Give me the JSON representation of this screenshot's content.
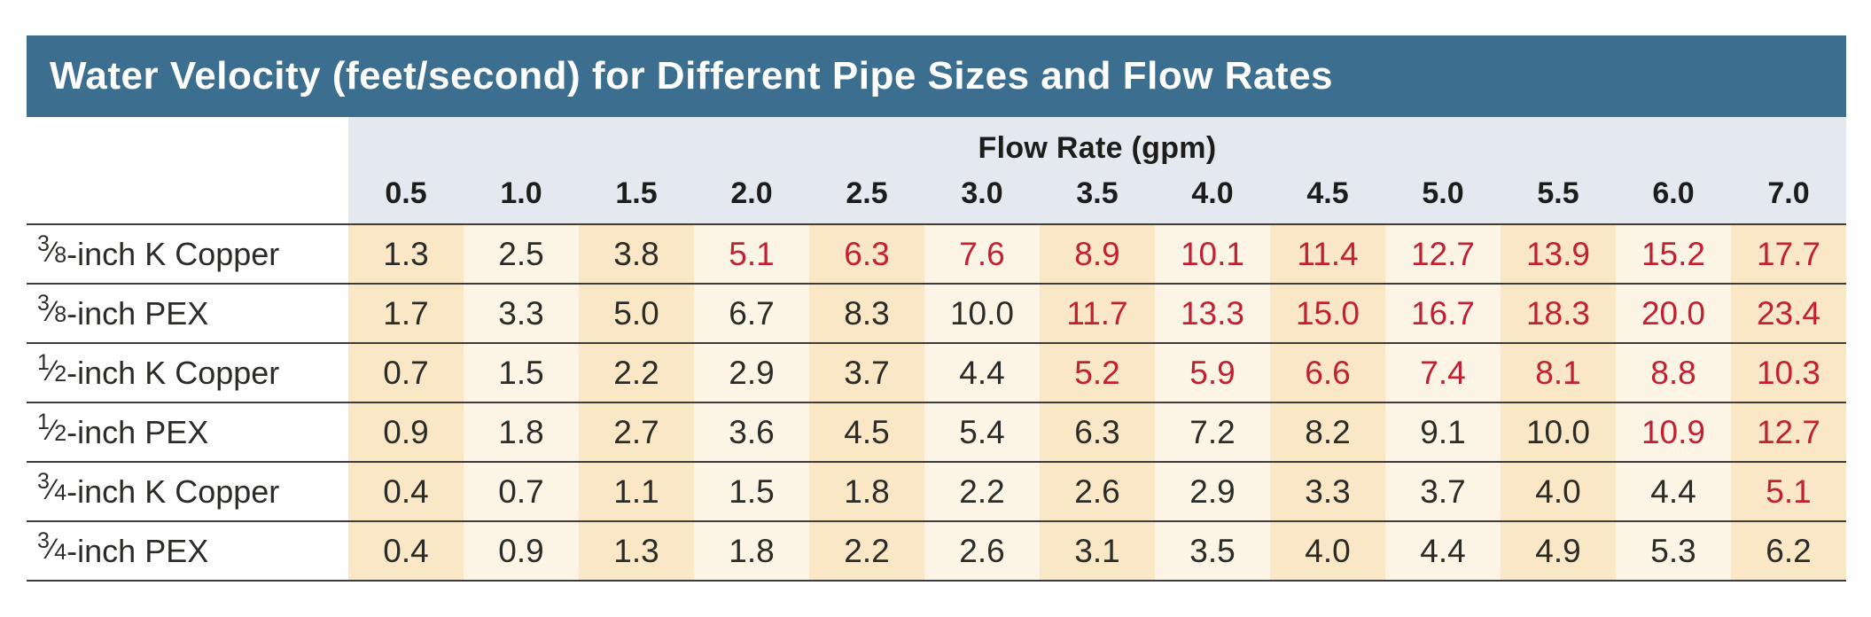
{
  "title": "Water Velocity (feet/second) for Different Pipe Sizes and Flow Rates",
  "colors": {
    "title_bar_bg": "#3C6E8F",
    "title_text": "#FFFFFF",
    "header_bg": "#E4E9F0",
    "column_dark_bg": "#F9E7C6",
    "column_light_bg": "#FCF5E6",
    "value_normal": "#2B2B28",
    "value_excessive": "#C22033",
    "row_separator": "#3D3C3A"
  },
  "table": {
    "flow_header": "Flow Rate (gpm)",
    "flow_columns": [
      "0.5",
      "1.0",
      "1.5",
      "2.0",
      "2.5",
      "3.0",
      "3.5",
      "4.0",
      "4.5",
      "5.0",
      "5.5",
      "6.0",
      "7.0"
    ],
    "rows": [
      {
        "pipe_size_numerator": "3",
        "pipe_size_denominator": "8",
        "pipe_label_rest": "-inch K Copper",
        "pipe_label_plain": "3/8-inch K Copper",
        "values": [
          "1.3",
          "2.5",
          "3.8",
          "5.1",
          "6.3",
          "7.6",
          "8.9",
          "10.1",
          "11.4",
          "12.7",
          "13.9",
          "15.2",
          "17.7"
        ],
        "high": [
          false,
          false,
          false,
          true,
          true,
          true,
          true,
          true,
          true,
          true,
          true,
          true,
          true
        ]
      },
      {
        "pipe_size_numerator": "3",
        "pipe_size_denominator": "8",
        "pipe_label_rest": "-inch PEX",
        "pipe_label_plain": "3/8-inch PEX",
        "values": [
          "1.7",
          "3.3",
          "5.0",
          "6.7",
          "8.3",
          "10.0",
          "11.7",
          "13.3",
          "15.0",
          "16.7",
          "18.3",
          "20.0",
          "23.4"
        ],
        "high": [
          false,
          false,
          false,
          false,
          false,
          false,
          true,
          true,
          true,
          true,
          true,
          true,
          true
        ]
      },
      {
        "pipe_size_numerator": "1",
        "pipe_size_denominator": "2",
        "pipe_label_rest": "-inch K Copper",
        "pipe_label_plain": "1/2-inch K Copper",
        "values": [
          "0.7",
          "1.5",
          "2.2",
          "2.9",
          "3.7",
          "4.4",
          "5.2",
          "5.9",
          "6.6",
          "7.4",
          "8.1",
          "8.8",
          "10.3"
        ],
        "high": [
          false,
          false,
          false,
          false,
          false,
          false,
          true,
          true,
          true,
          true,
          true,
          true,
          true
        ]
      },
      {
        "pipe_size_numerator": "1",
        "pipe_size_denominator": "2",
        "pipe_label_rest": "-inch PEX",
        "pipe_label_plain": "1/2-inch PEX",
        "values": [
          "0.9",
          "1.8",
          "2.7",
          "3.6",
          "4.5",
          "5.4",
          "6.3",
          "7.2",
          "8.2",
          "9.1",
          "10.0",
          "10.9",
          "12.7"
        ],
        "high": [
          false,
          false,
          false,
          false,
          false,
          false,
          false,
          false,
          false,
          false,
          false,
          true,
          true
        ]
      },
      {
        "pipe_size_numerator": "3",
        "pipe_size_denominator": "4",
        "pipe_label_rest": "-inch K Copper",
        "pipe_label_plain": "3/4-inch K Copper",
        "values": [
          "0.4",
          "0.7",
          "1.1",
          "1.5",
          "1.8",
          "2.2",
          "2.6",
          "2.9",
          "3.3",
          "3.7",
          "4.0",
          "4.4",
          "5.1"
        ],
        "high": [
          false,
          false,
          false,
          false,
          false,
          false,
          false,
          false,
          false,
          false,
          false,
          false,
          true
        ]
      },
      {
        "pipe_size_numerator": "3",
        "pipe_size_denominator": "4",
        "pipe_label_rest": "-inch PEX",
        "pipe_label_plain": "3/4-inch PEX",
        "values": [
          "0.4",
          "0.9",
          "1.3",
          "1.8",
          "2.2",
          "2.6",
          "3.1",
          "3.5",
          "4.0",
          "4.4",
          "4.9",
          "5.3",
          "6.2"
        ],
        "high": [
          false,
          false,
          false,
          false,
          false,
          false,
          false,
          false,
          false,
          false,
          false,
          false,
          false
        ]
      }
    ]
  },
  "chart_data": {
    "type": "table",
    "title": "Water Velocity (feet/second) for Different Pipe Sizes and Flow Rates",
    "xlabel": "Flow Rate (gpm)",
    "x": [
      0.5,
      1.0,
      1.5,
      2.0,
      2.5,
      3.0,
      3.5,
      4.0,
      4.5,
      5.0,
      5.5,
      6.0,
      7.0
    ],
    "series": [
      {
        "name": "3/8-inch K Copper",
        "values": [
          1.3,
          2.5,
          3.8,
          5.1,
          6.3,
          7.6,
          8.9,
          10.1,
          11.4,
          12.7,
          13.9,
          15.2,
          17.7
        ]
      },
      {
        "name": "3/8-inch PEX",
        "values": [
          1.7,
          3.3,
          5.0,
          6.7,
          8.3,
          10.0,
          11.7,
          13.3,
          15.0,
          16.7,
          18.3,
          20.0,
          23.4
        ]
      },
      {
        "name": "1/2-inch K Copper",
        "values": [
          0.7,
          1.5,
          2.2,
          2.9,
          3.7,
          4.4,
          5.2,
          5.9,
          6.6,
          7.4,
          8.1,
          8.8,
          10.3
        ]
      },
      {
        "name": "1/2-inch PEX",
        "values": [
          0.9,
          1.8,
          2.7,
          3.6,
          4.5,
          5.4,
          6.3,
          7.2,
          8.2,
          9.1,
          10.0,
          10.9,
          12.7
        ]
      },
      {
        "name": "3/4-inch K Copper",
        "values": [
          0.4,
          0.7,
          1.1,
          1.5,
          1.8,
          2.2,
          2.6,
          2.9,
          3.3,
          3.7,
          4.0,
          4.4,
          5.1
        ]
      },
      {
        "name": "3/4-inch PEX",
        "values": [
          0.4,
          0.9,
          1.3,
          1.8,
          2.2,
          2.6,
          3.1,
          3.5,
          4.0,
          4.4,
          4.9,
          5.3,
          6.2
        ]
      }
    ],
    "value_color_flags": "rows[].high marks values rendered in red in the source graphic",
    "legend_position": "none",
    "grid": false
  }
}
